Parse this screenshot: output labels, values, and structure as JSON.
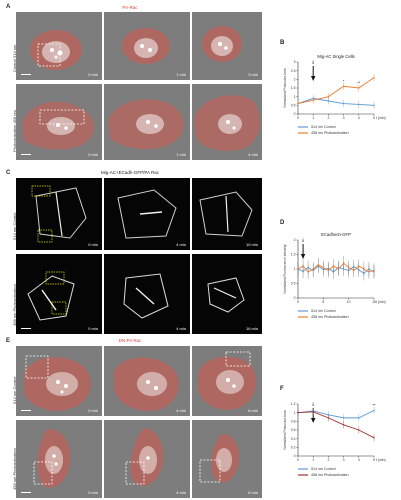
{
  "panels": {
    "A": {
      "letter": "A",
      "title": "PA-Rac",
      "rows": [
        {
          "label": "Control 514 nm",
          "times": [
            "0 min",
            "1 min",
            "3 min"
          ]
        },
        {
          "label": "Photoactivation 458 nm",
          "times": [
            "0 min",
            "1 min",
            "4 min"
          ]
        }
      ]
    },
    "B": {
      "letter": "B"
    },
    "C": {
      "letter": "C",
      "title": "Mig-AC+ECadh-GFP/PA Rac",
      "rows": [
        {
          "label": "514 nm Control",
          "times": [
            "0 min",
            "4 min",
            "10 min"
          ]
        },
        {
          "label": "458 nm Photoactivation",
          "times": [
            "0 min",
            "4 min",
            "16 min"
          ]
        }
      ]
    },
    "D": {
      "letter": "D"
    },
    "E": {
      "letter": "E",
      "title": "DN-PA Rac",
      "rows": [
        {
          "label": "514 nm Control",
          "times": [
            "0 min",
            "4 min",
            "8 min"
          ]
        },
        {
          "label": "458 nm Photoactivation",
          "times": [
            "0 min",
            "4 min",
            "6 min"
          ]
        }
      ]
    },
    "F": {
      "letter": "F"
    }
  },
  "colors": {
    "blue": "#5b9bd5",
    "orange": "#ed7d31",
    "darkred": "#a3302f",
    "pa_red": "#e0443a"
  },
  "chart_data": [
    {
      "id": "B",
      "type": "line",
      "title": "Mig-AC Single Cells",
      "xlabel": "t (min)",
      "ylabel": "Normalized Protrusion Area",
      "x": [
        0,
        1,
        2,
        3,
        4,
        5
      ],
      "xticks": [
        "0",
        "1",
        "2",
        "3",
        "4",
        "5"
      ],
      "ylim": [
        0,
        3
      ],
      "yticks": [
        "0",
        "0.5",
        "1",
        "1.5",
        "2",
        "2.5",
        "3"
      ],
      "annotation": "λ",
      "marker_x": 1,
      "significance": [
        {
          "x": 3,
          "label": "*"
        },
        {
          "x": 4,
          "label": "**"
        }
      ],
      "legend": [
        "514 nm Control",
        "458 nm Photoactivation"
      ],
      "series": [
        {
          "name": "514 nm Control",
          "color": "#5b9bd5",
          "values": [
            0.6,
            0.9,
            0.75,
            0.6,
            0.55,
            0.5
          ]
        },
        {
          "name": "458 nm Photoactivation",
          "color": "#ed7d31",
          "values": [
            0.6,
            0.8,
            1.0,
            1.6,
            1.5,
            2.1
          ]
        }
      ]
    },
    {
      "id": "D",
      "type": "line",
      "title": "ECadherin-GFP",
      "xlabel": "t (min)",
      "ylabel": "Normalized Fluorescence Intensity",
      "xlim": [
        0,
        15
      ],
      "xticks": [
        "0",
        "5",
        "10",
        "15"
      ],
      "ylim": [
        0,
        2
      ],
      "yticks": [
        "0",
        "0.5",
        "1",
        "1.5",
        "2"
      ],
      "annotation": "λ",
      "marker_x": 1,
      "legend": [
        "514 nm Control",
        "458 nm Photoactivation"
      ],
      "series": [
        {
          "name": "514 nm Control",
          "color": "#5b9bd5",
          "x": [
            0,
            1,
            2,
            3,
            4,
            5,
            6,
            7,
            8,
            9,
            10,
            11,
            12,
            13,
            14,
            15
          ],
          "values": [
            1.0,
            0.92,
            1.05,
            0.95,
            1.1,
            0.98,
            1.02,
            0.9,
            1.05,
            1.0,
            0.95,
            1.08,
            0.97,
            0.85,
            1.0,
            0.9
          ]
        },
        {
          "name": "458 nm Photoactivation",
          "color": "#ed7d31",
          "x": [
            0,
            1,
            2,
            3,
            4,
            5,
            6,
            7,
            8,
            9,
            10,
            11,
            12,
            13,
            14,
            15
          ],
          "values": [
            1.0,
            1.1,
            0.9,
            1.0,
            1.15,
            1.05,
            0.95,
            1.1,
            1.0,
            1.2,
            1.05,
            0.95,
            1.1,
            1.0,
            0.9,
            0.95
          ]
        }
      ]
    },
    {
      "id": "F",
      "type": "line",
      "title": "",
      "xlabel": "t (min)",
      "ylabel": "Normalized Protrusion Area",
      "x": [
        0,
        1,
        2,
        3,
        4,
        5
      ],
      "xticks": [
        "0",
        "1",
        "2",
        "3",
        "4",
        "5"
      ],
      "ylim": [
        0,
        1.2
      ],
      "yticks": [
        "0",
        "0.2",
        "0.4",
        "0.6",
        "0.8",
        "1",
        "1.2"
      ],
      "annotation": "λ",
      "marker_x": 1,
      "significance": [
        {
          "x": 5,
          "label": "**"
        }
      ],
      "legend": [
        "514 nm Control",
        "458 nm Photoactivation"
      ],
      "series": [
        {
          "name": "514 nm Control",
          "color": "#5b9bd5",
          "values": [
            1.0,
            1.04,
            0.95,
            0.88,
            0.88,
            1.05
          ]
        },
        {
          "name": "458 nm Photoactivation",
          "color": "#a3302f",
          "values": [
            1.0,
            1.02,
            0.88,
            0.72,
            0.6,
            0.42
          ]
        }
      ]
    }
  ]
}
